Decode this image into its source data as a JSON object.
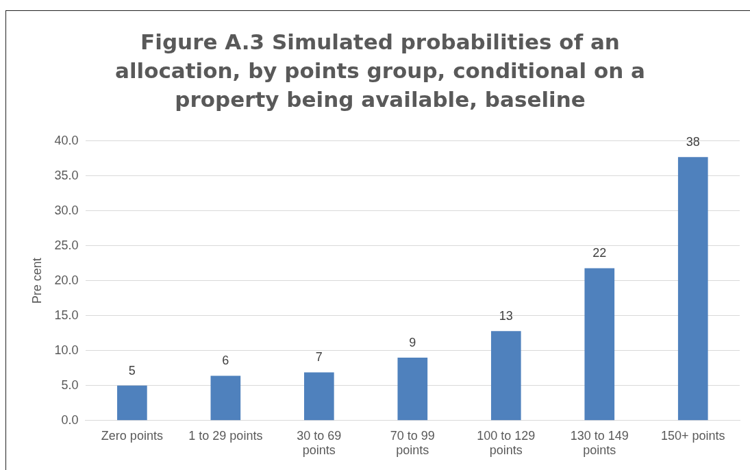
{
  "chart_data": {
    "type": "bar",
    "title": "Figure A.3 Simulated probabilities of an allocation, by points group, conditional on a property being available, baseline",
    "ylabel": "Pre cent",
    "categories": [
      "Zero points",
      "1 to 29 points",
      "30 to 69 points",
      "70 to 99 points",
      "100 to 129 points",
      "130 to 149 points",
      "150+ points"
    ],
    "values": [
      5.0,
      6.4,
      6.9,
      9.0,
      12.8,
      21.8,
      37.7
    ],
    "value_labels": [
      "5",
      "6",
      "7",
      "9",
      "13",
      "22",
      "38"
    ],
    "color": "#4f81bd",
    "ylim": [
      0,
      40
    ],
    "yticks": [
      {
        "value": 0,
        "label": "0.0"
      },
      {
        "value": 5,
        "label": "5.0"
      },
      {
        "value": 10,
        "label": "10.0"
      },
      {
        "value": 15,
        "label": "15.0"
      },
      {
        "value": 20,
        "label": "20.0"
      },
      {
        "value": 25,
        "label": "25.0"
      },
      {
        "value": 30,
        "label": "30.0"
      },
      {
        "value": 35,
        "label": "35.0"
      },
      {
        "value": 40,
        "label": "40.0"
      }
    ],
    "grid": "y",
    "legend": false
  }
}
